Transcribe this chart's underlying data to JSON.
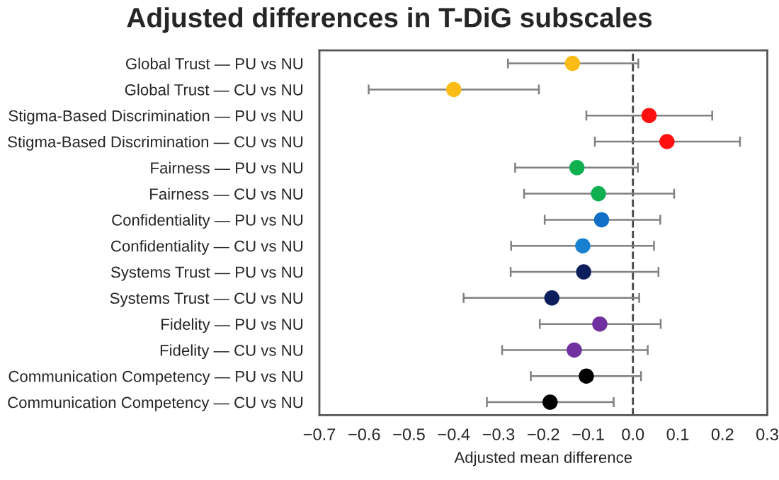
{
  "chart_data": {
    "type": "scatter",
    "orientation": "horizontal",
    "title": "Adjusted differences in T-DiG subscales",
    "xlabel": "Adjusted mean difference",
    "categories": [
      "Global Trust — PU vs NU",
      "Global Trust — CU vs NU",
      "Stigma-Based Discrimination — PU vs NU",
      "Stigma-Based Discrimination — CU vs NU",
      "Fairness — PU vs NU",
      "Fairness — CU vs NU",
      "Confidentiality — PU vs NU",
      "Confidentiality — CU vs NU",
      "Systems Trust — PU vs NU",
      "Systems Trust — CU vs NU",
      "Fidelity — PU vs NU",
      "Fidelity — CU vs NU",
      "Communication Competency — PU vs NU",
      "Communication Competency — CU vs NU"
    ],
    "values": [
      -0.135,
      -0.4,
      0.036,
      0.076,
      -0.125,
      -0.077,
      -0.07,
      -0.112,
      -0.11,
      -0.181,
      -0.074,
      -0.131,
      -0.104,
      -0.185
    ],
    "errors": [
      [
        -0.279,
        0.012
      ],
      [
        -0.59,
        -0.21
      ],
      [
        -0.104,
        0.177
      ],
      [
        -0.085,
        0.239
      ],
      [
        -0.263,
        0.011
      ],
      [
        -0.243,
        0.092
      ],
      [
        -0.197,
        0.061
      ],
      [
        -0.272,
        0.047
      ],
      [
        -0.273,
        0.057
      ],
      [
        -0.378,
        0.014
      ],
      [
        -0.208,
        0.062
      ],
      [
        -0.292,
        0.033
      ],
      [
        -0.228,
        0.018
      ],
      [
        -0.326,
        -0.043
      ]
    ],
    "colors": [
      "#fbbc17",
      "#fbbc17",
      "#ff1010",
      "#ff1010",
      "#10b050",
      "#10b050",
      "#1070c8",
      "#1880d0",
      "#0c1e5c",
      "#0c1e5c",
      "#7030a0",
      "#7030a0",
      "#000000",
      "#000000"
    ],
    "marker": "circle",
    "xlim": [
      -0.7,
      0.3
    ],
    "xticks": [
      {
        "value": -0.7,
        "label": "−0.7"
      },
      {
        "value": -0.6,
        "label": "−0.6"
      },
      {
        "value": -0.5,
        "label": "−0.5"
      },
      {
        "value": -0.4,
        "label": "−0.4"
      },
      {
        "value": -0.3,
        "label": "−0.3"
      },
      {
        "value": -0.2,
        "label": "−0.2"
      },
      {
        "value": -0.1,
        "label": "−0.1"
      },
      {
        "value": 0,
        "label": "0.0"
      },
      {
        "value": 0.1,
        "label": "0.1"
      },
      {
        "value": 0.2,
        "label": "0.2"
      },
      {
        "value": 0.3,
        "label": "0.3"
      }
    ],
    "ref_lines": [
      {
        "axis": "x",
        "value": 0,
        "color": "#444444",
        "line_style": "dashed"
      }
    ],
    "grid": false
  }
}
